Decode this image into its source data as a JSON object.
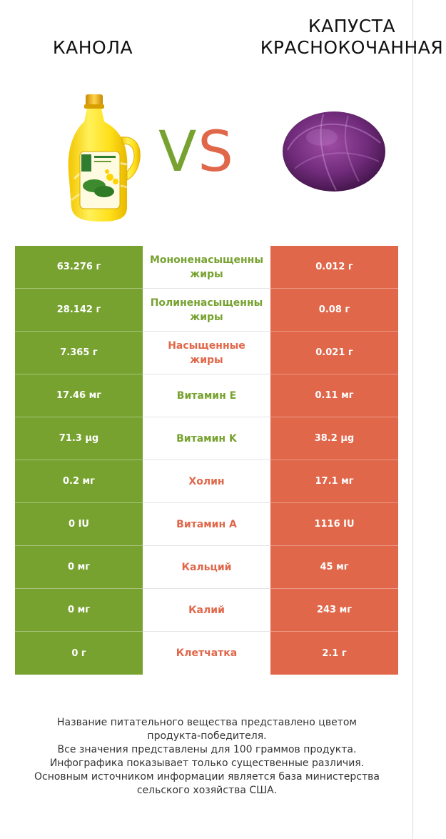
{
  "header": {
    "left_product": "КАНОЛА",
    "right_product": "КАПУСТА\nКРАСНОКОЧАННАЯ",
    "vs_v": "V",
    "vs_s": "S"
  },
  "colors": {
    "left_accent": "#77a230",
    "right_accent": "#e0674a"
  },
  "rows": [
    {
      "left": "63.276 г",
      "nutrient_line1": "Мононенасыщенны",
      "nutrient_line2": "жиры",
      "right": "0.012 г",
      "winner": "left"
    },
    {
      "left": "28.142 г",
      "nutrient_line1": "Полиненасыщенны",
      "nutrient_line2": "жиры",
      "right": "0.08 г",
      "winner": "left"
    },
    {
      "left": "7.365 г",
      "nutrient_line1": "Насыщенные",
      "nutrient_line2": "жиры",
      "right": "0.021 г",
      "winner": "right"
    },
    {
      "left": "17.46 мг",
      "nutrient_line1": "Витамин E",
      "nutrient_line2": "",
      "right": "0.11 мг",
      "winner": "left"
    },
    {
      "left": "71.3 µg",
      "nutrient_line1": "Витамин K",
      "nutrient_line2": "",
      "right": "38.2 µg",
      "winner": "left"
    },
    {
      "left": "0.2 мг",
      "nutrient_line1": "Холин",
      "nutrient_line2": "",
      "right": "17.1 мг",
      "winner": "right"
    },
    {
      "left": "0 IU",
      "nutrient_line1": "Витамин A",
      "nutrient_line2": "",
      "right": "1116 IU",
      "winner": "right"
    },
    {
      "left": "0 мг",
      "nutrient_line1": "Кальций",
      "nutrient_line2": "",
      "right": "45 мг",
      "winner": "right"
    },
    {
      "left": "0 мг",
      "nutrient_line1": "Калий",
      "nutrient_line2": "",
      "right": "243 мг",
      "winner": "right"
    },
    {
      "left": "0 г",
      "nutrient_line1": "Клетчатка",
      "nutrient_line2": "",
      "right": "2.1 г",
      "winner": "right"
    }
  ],
  "footer": {
    "line1": "Название питательного вещества представлено цветом",
    "line2": "продукта-победителя.",
    "line3": "Все значения представлены для 100 граммов продукта.",
    "line4": "Инфографика показывает только существенные различия.",
    "line5": "Основным источником информации является база министерства",
    "line6": "сельского хозяйства США."
  }
}
